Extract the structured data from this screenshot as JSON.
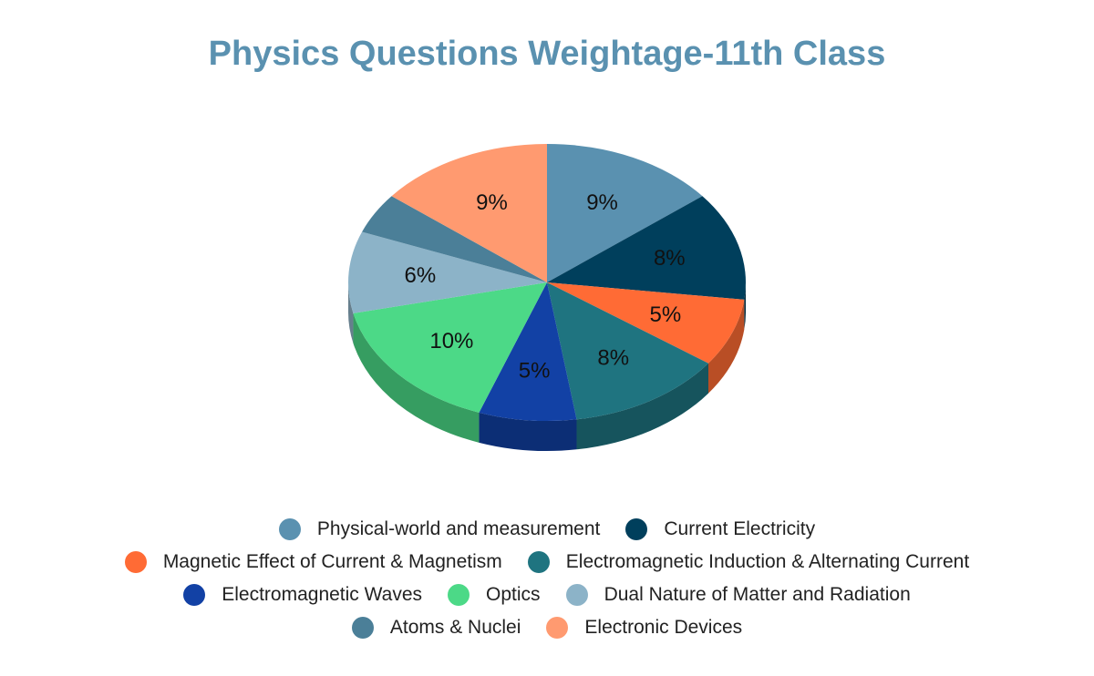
{
  "chart_data": {
    "type": "pie",
    "title": "Physics Questions Weightage-11th Class",
    "legend_position": "bottom",
    "slices": [
      {
        "name": "Physical-world and measurement",
        "value": 9,
        "label": "9%",
        "color": "#5a91b0",
        "side_color": "#3f6b84"
      },
      {
        "name": "Current Electricity",
        "value": 8,
        "label": "8%",
        "color": "#003f5c",
        "side_color": "#002a3e"
      },
      {
        "name": "Magnetic Effect of Current & Magnetism",
        "value": 5,
        "label": "5%",
        "color": "#ff6b35",
        "side_color": "#b94e25"
      },
      {
        "name": "Electromagnetic Induction & Alternating Current",
        "value": 8,
        "label": "8%",
        "color": "#1f7480",
        "side_color": "#16545d"
      },
      {
        "name": "Electromagnetic Waves",
        "value": 5,
        "label": "5%",
        "color": "#1241a5",
        "side_color": "#0c2e75"
      },
      {
        "name": "Optics",
        "value": 10,
        "label": "10%",
        "color": "#4cd987",
        "side_color": "#369d61"
      },
      {
        "name": "Dual Nature of Matter and Radiation",
        "value": 6,
        "label": "6%",
        "color": "#8cb3c8",
        "side_color": "#667f8d"
      },
      {
        "name": "Atoms & Nuclei",
        "value": 3,
        "label": "",
        "color": "#4b7f98",
        "side_color": "#355a6c"
      },
      {
        "name": "Electronic Devices",
        "value": 9,
        "label": "9%",
        "color": "#ff9a70",
        "side_color": "#b86f50"
      }
    ]
  }
}
